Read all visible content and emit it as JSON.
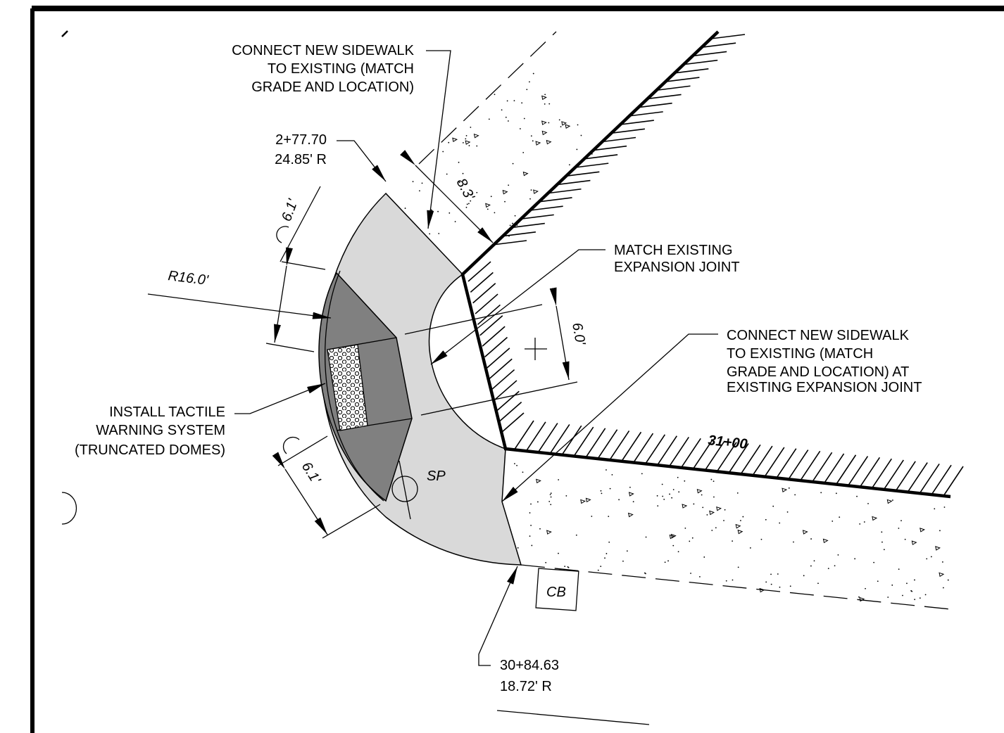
{
  "notes": {
    "connect_top": [
      "CONNECT NEW SIDEWALK",
      "TO EXISTING (MATCH",
      "GRADE AND LOCATION)"
    ],
    "match_joint": [
      "MATCH EXISTING",
      "EXPANSION JOINT"
    ],
    "connect_right": [
      "CONNECT NEW SIDEWALK",
      "TO EXISTING (MATCH",
      "GRADE AND LOCATION) AT",
      "EXISTING EXPANSION JOINT"
    ],
    "tactile": [
      "INSTALL TACTILE",
      "WARNING SYSTEM",
      "(TRUNCATED DOMES)"
    ]
  },
  "stations": {
    "top": [
      "2+77.70",
      "24.85' R"
    ],
    "bottom": [
      "30+84.63",
      "18.72' R"
    ]
  },
  "dimensions": {
    "width_top": "8.3'",
    "landing_top": "6.1'",
    "radius": "R16.0'",
    "ramp": "6.0'",
    "landing_bottom": "6.1'"
  },
  "station_mark": "31+00",
  "labels": {
    "signpost": "SP",
    "catch_basin": "CB"
  }
}
